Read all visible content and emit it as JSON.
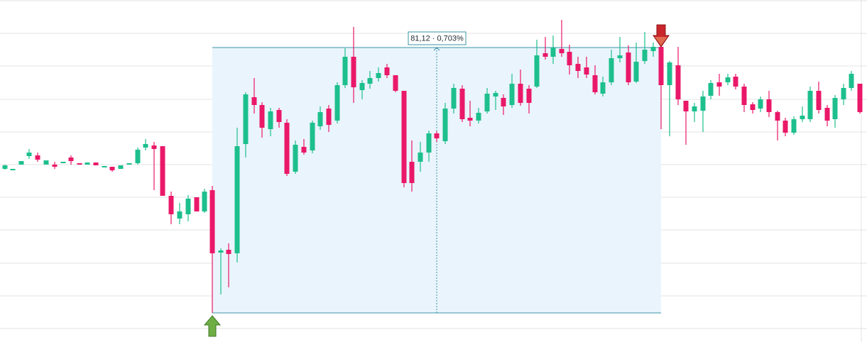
{
  "measurement": {
    "label": "81,12 · 0,703%"
  }
}
